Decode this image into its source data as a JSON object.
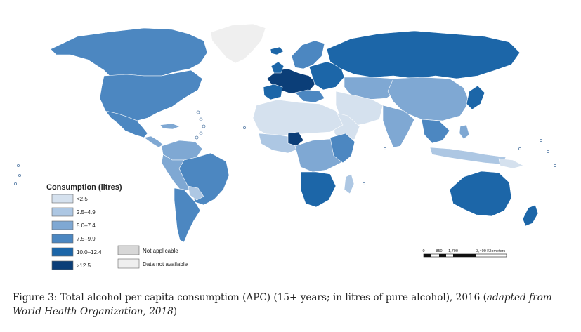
{
  "legend": {
    "title": "Consumption (litres)",
    "items": [
      {
        "label": "<2.5",
        "color": "#d5e1ee"
      },
      {
        "label": "2.5–4.9",
        "color": "#adc7e3"
      },
      {
        "label": "5.0–7.4",
        "color": "#7fa8d3"
      },
      {
        "label": "7.5–9.9",
        "color": "#4c87c1"
      },
      {
        "label": "10.0–12.4",
        "color": "#1c66a8"
      },
      {
        "label": "≥12.5",
        "color": "#0b3e78"
      }
    ],
    "extra": [
      {
        "label": "Not applicable",
        "color": "#d7d7d7"
      },
      {
        "label": "Data not available",
        "color": "#efefef"
      }
    ]
  },
  "scale_bar": {
    "labels": [
      "0",
      "850",
      "1,700",
      "3,400 Kilometers"
    ]
  },
  "caption": {
    "main": "Figure 3: Total alcohol per capita consumption (APC) (15+ years; in litres of pure alcohol), 2016 (",
    "source": "adapted from World Health Organization, 2018",
    "end": ")"
  }
}
